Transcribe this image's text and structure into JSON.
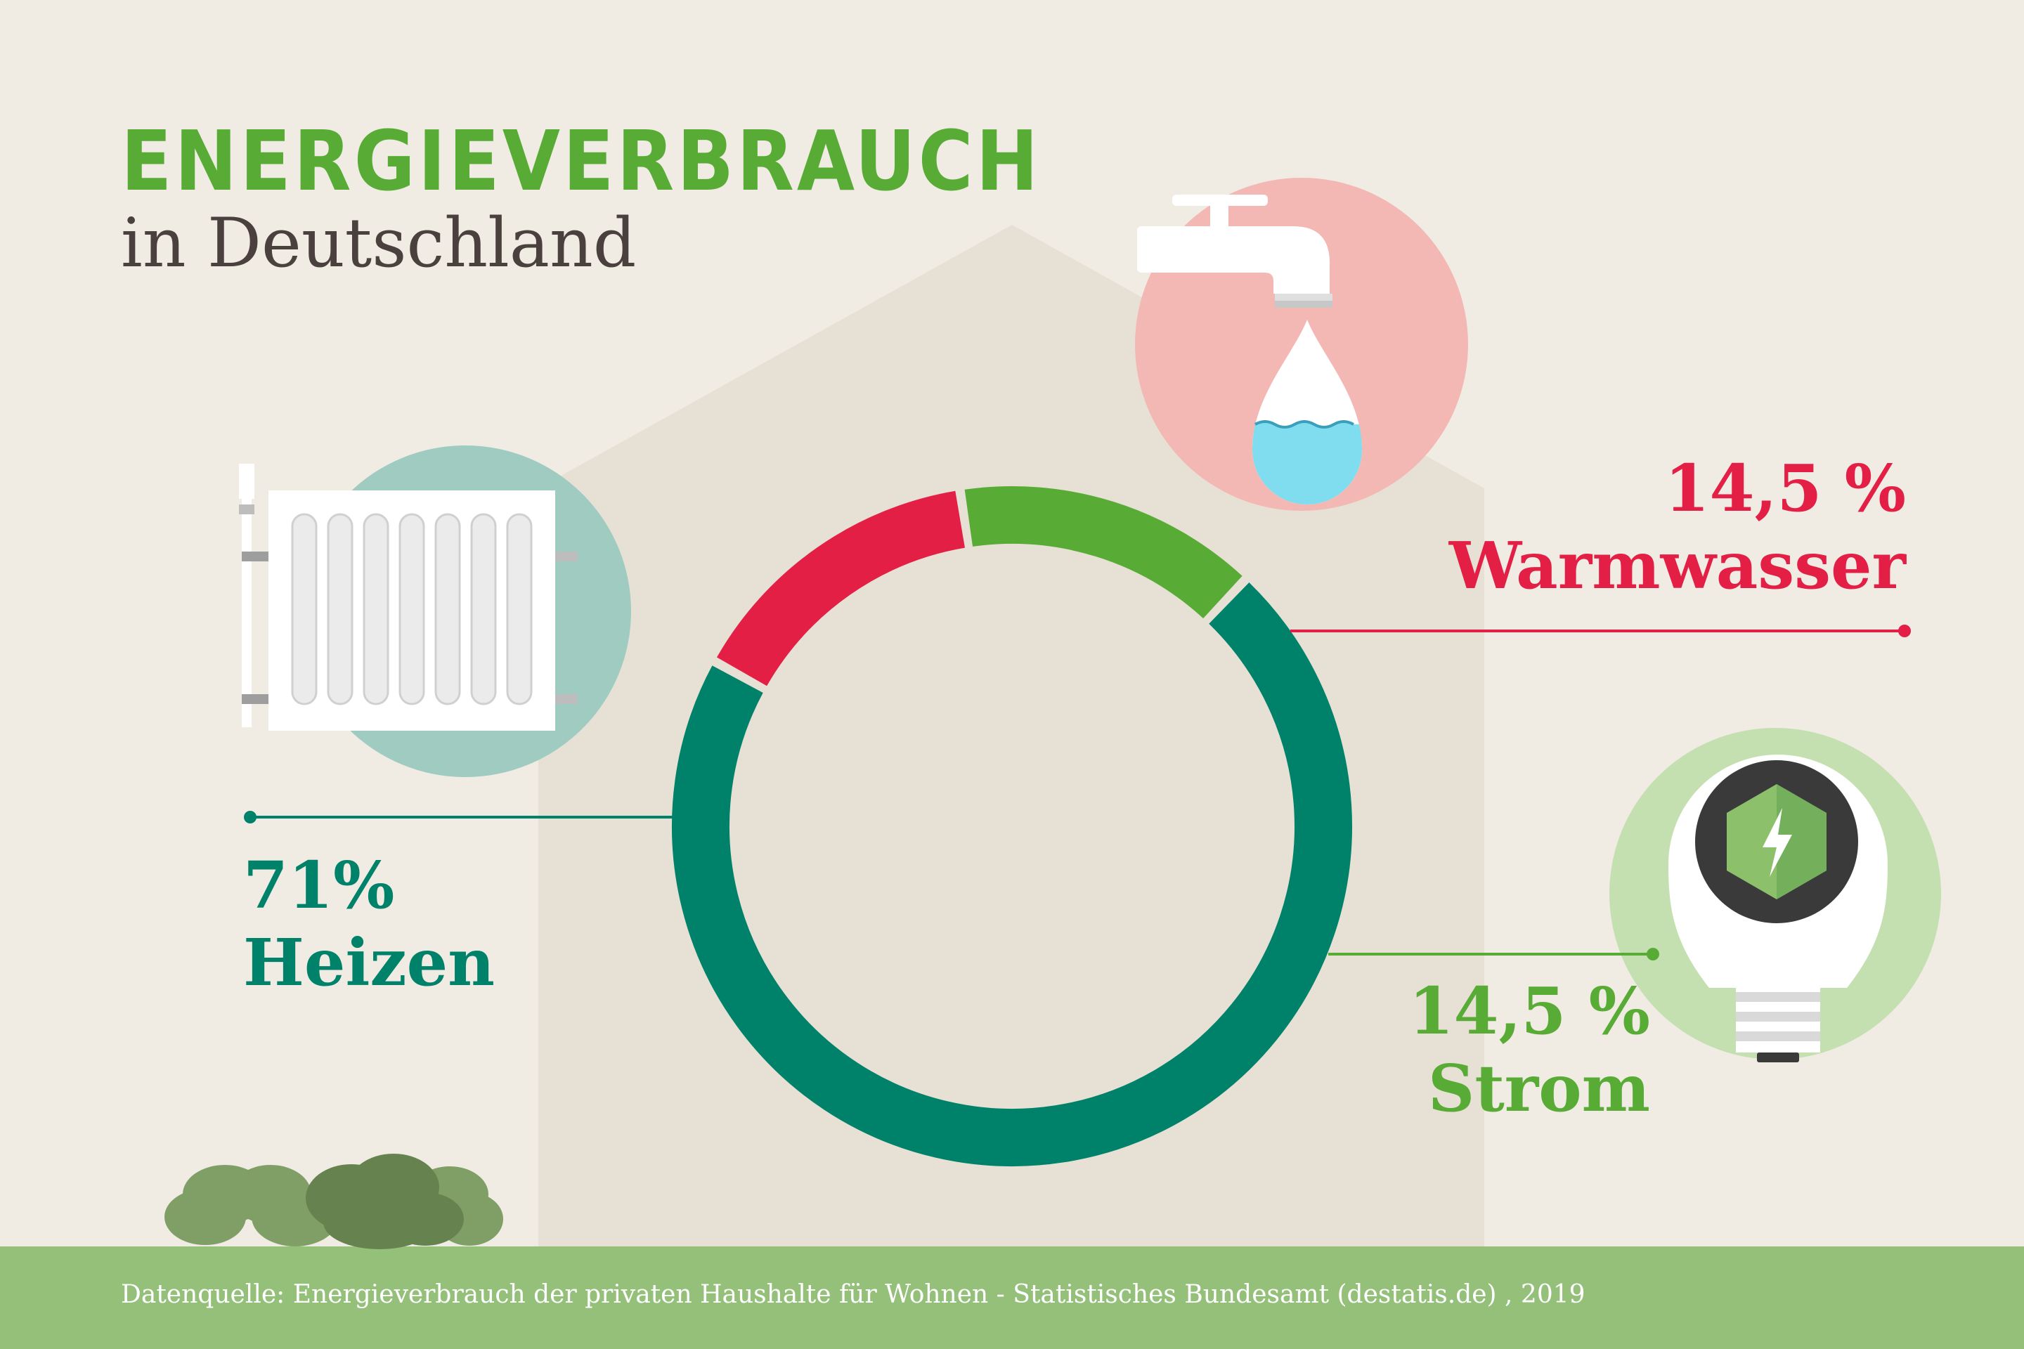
{
  "title": {
    "main": "ENERGIEVERBRAUCH",
    "sub": "in Deutschland"
  },
  "colors": {
    "background": "#f0ece4",
    "house": "#e6e1d4",
    "title_green": "#58ac35",
    "title_dark": "#4a403d",
    "heizen": "#00826a",
    "warmwasser": "#e41f45",
    "strom": "#58ac35",
    "footer": "#94c07a"
  },
  "icons": [
    "radiator-icon",
    "water-tap-icon",
    "light-bulb-icon",
    "bush-icon"
  ],
  "chart_data": {
    "type": "donut",
    "title": "ENERGIEVERBRAUCH in Deutschland",
    "series": [
      {
        "label": "Heizen",
        "value": 71,
        "value_label": "71%",
        "color": "#00826a"
      },
      {
        "label": "Warmwasser",
        "value": 14.5,
        "value_label": "14,5 %",
        "color": "#e41f45"
      },
      {
        "label": "Strom",
        "value": 14.5,
        "value_label": "14,5 %",
        "color": "#58ac35"
      }
    ]
  },
  "footer": {
    "source": "Datenquelle: Energieverbrauch der privaten Haushalte für Wohnen - Statistisches Bundesamt (destatis.de) , 2019"
  }
}
